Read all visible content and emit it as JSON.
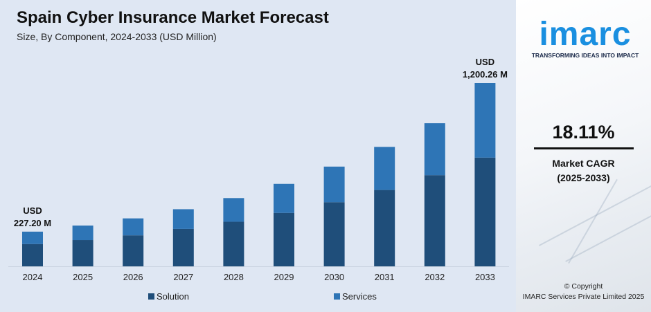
{
  "title": "Spain Cyber Insurance Market Forecast",
  "subtitle": "Size, By Component, 2024-2033 (USD Million)",
  "chart_data": {
    "type": "bar",
    "stacked": true,
    "categories": [
      "2024",
      "2025",
      "2026",
      "2027",
      "2028",
      "2029",
      "2030",
      "2031",
      "2032",
      "2033"
    ],
    "series": [
      {
        "name": "Solution",
        "color": "#1f4e7a",
        "values": [
          146,
          172,
          203,
          245,
          292,
          350,
          420,
          500,
          597,
          712
        ]
      },
      {
        "name": "Services",
        "color": "#2e75b6",
        "values": [
          81.2,
          95,
          111,
          129,
          155,
          190,
          233,
          282,
          340,
          488.26
        ]
      }
    ],
    "totals_labels": [
      {
        "category": "2024",
        "line1": "USD",
        "line2": "227.20 M"
      },
      {
        "category": "2033",
        "line1": "USD",
        "line2": "1,200.26 M"
      }
    ],
    "ylim": [
      0,
      1200.26
    ],
    "xlabel": "",
    "ylabel": "",
    "grid": false,
    "legend_position": "bottom"
  },
  "brand": {
    "logo_text": "imarc",
    "tagline": "TRANSFORMING IDEAS INTO IMPACT",
    "color": "#1a8fe0"
  },
  "cagr": {
    "value": "18.11%",
    "label_line1": "Market CAGR",
    "label_line2": "(2025-2033)"
  },
  "copyright": {
    "line1": "© Copyright",
    "line2": "IMARC Services Private Limited 2025"
  }
}
